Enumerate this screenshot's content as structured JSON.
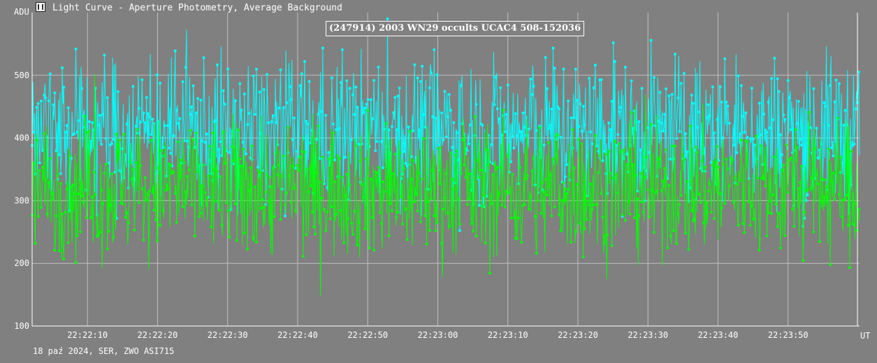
{
  "window": {
    "title": "Light Curve - Aperture Photometry, Average Background",
    "icon": "chart-window-icon"
  },
  "footer": {
    "info": "18 paź 2024, SER, ZWO ASI715"
  },
  "chart_data": {
    "type": "line",
    "title": "(247914) 2003 WN29 occults UCAC4 508-152036",
    "ylabel": "ADU",
    "xlabel": "UT",
    "ylim": [
      100,
      600
    ],
    "yticks": [
      100,
      200,
      300,
      400,
      500
    ],
    "ytick_labels": [
      "100",
      "200",
      "300",
      "400",
      "500"
    ],
    "xlim_seconds": [
      2.1,
      61.25
    ],
    "xticks": [
      10,
      20,
      30,
      40,
      50,
      60,
      70,
      80,
      90,
      100,
      110
    ],
    "xtick_labels": [
      "22:22:10",
      "22:22:20",
      "22:22:30",
      "22:22:40",
      "22:22:50",
      "22:23:00",
      "22:23:10",
      "22:23:20",
      "22:23:30",
      "22:23:40",
      "22:23:50"
    ],
    "x_start": "22:22:02",
    "x_end": "22:24:01",
    "grid": true,
    "colors": {
      "background": "#808080",
      "grid": "#c0c0c0",
      "axes": "#ffffff"
    },
    "series": [
      {
        "color": "#00ffff",
        "points": 1100,
        "y_mean": 410,
        "y_range": [
          190,
          590
        ]
      },
      {
        "color": "#00ff00",
        "points": 1100,
        "y_mean": 320,
        "y_range": [
          130,
          510
        ]
      }
    ]
  }
}
